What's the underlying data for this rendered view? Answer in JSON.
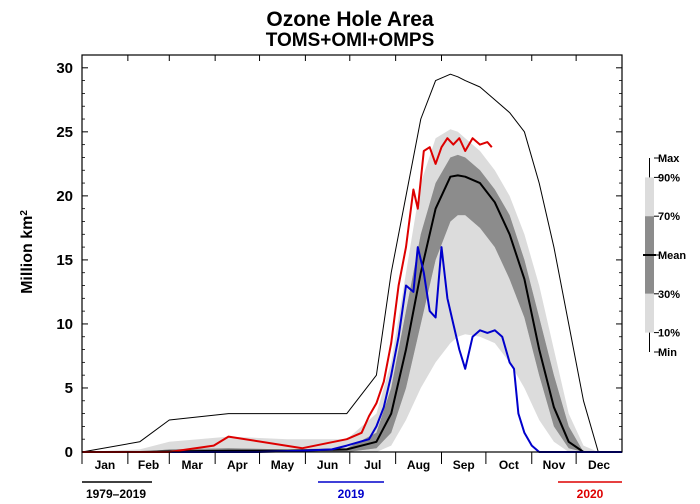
{
  "chart_data": {
    "type": "line",
    "title": "Ozone Hole Area",
    "subtitle": "TOMS+OMI+OMPS",
    "ylabel": "Million km",
    "ylabel_superscript": "2",
    "ylim": [
      0,
      31
    ],
    "yticks": [
      0,
      5,
      10,
      15,
      20,
      25,
      30
    ],
    "xlim": [
      1,
      366
    ],
    "months": [
      {
        "label": "Jan",
        "start": 1
      },
      {
        "label": "Feb",
        "start": 32
      },
      {
        "label": "Mar",
        "start": 60
      },
      {
        "label": "Apr",
        "start": 91
      },
      {
        "label": "May",
        "start": 121
      },
      {
        "label": "Jun",
        "start": 152
      },
      {
        "label": "Jul",
        "start": 182
      },
      {
        "label": "Aug",
        "start": 213
      },
      {
        "label": "Sep",
        "start": 244
      },
      {
        "label": "Oct",
        "start": 274
      },
      {
        "label": "Nov",
        "start": 305
      },
      {
        "label": "Dec",
        "start": 335
      }
    ],
    "x": [
      1,
      40,
      60,
      100,
      140,
      180,
      200,
      210,
      220,
      230,
      240,
      250,
      255,
      260,
      270,
      280,
      290,
      300,
      310,
      320,
      330,
      340,
      350,
      366
    ],
    "series": [
      {
        "name": "Max",
        "color": "#000000",
        "values": [
          0,
          0.8,
          2.5,
          3,
          3,
          3,
          6,
          14,
          20,
          26,
          29,
          29.5,
          29.3,
          29,
          28.5,
          27.5,
          26.5,
          25,
          21,
          16,
          10,
          4,
          0,
          0
        ]
      },
      {
        "name": "90%",
        "color": "#dcdcdc",
        "values": [
          0,
          0.2,
          0.8,
          1.2,
          1.0,
          1.0,
          3,
          7,
          14,
          21,
          24.5,
          25.2,
          25.0,
          24.5,
          23.5,
          22,
          20,
          17,
          13,
          8,
          3,
          0.5,
          0,
          0
        ]
      },
      {
        "name": "70%",
        "color": "#b4b4b4",
        "values": [
          0,
          0,
          0.2,
          0.3,
          0.2,
          0.3,
          1.5,
          5,
          11,
          17,
          21,
          23,
          23.2,
          23,
          22,
          20.5,
          18.5,
          15,
          10.5,
          6,
          2,
          0,
          0,
          0
        ]
      },
      {
        "name": "Mean",
        "color": "#000000",
        "values": [
          0,
          0,
          0.05,
          0.1,
          0.1,
          0.2,
          0.8,
          3,
          8,
          14,
          19,
          21.5,
          21.6,
          21.5,
          21,
          19.5,
          17,
          13.5,
          8,
          3.5,
          0.8,
          0,
          0,
          0
        ]
      },
      {
        "name": "30%",
        "color": "#8c8c8c",
        "values": [
          0,
          0,
          0,
          0,
          0,
          0,
          0.3,
          1.5,
          5,
          10,
          15,
          18,
          18.5,
          18.5,
          17.5,
          16,
          13.5,
          10.5,
          6,
          2,
          0.3,
          0,
          0,
          0
        ]
      },
      {
        "name": "10%",
        "color": "#b4b4b4",
        "values": [
          0,
          0,
          0,
          0,
          0,
          0,
          0,
          0.5,
          2.5,
          5,
          7,
          8.5,
          9,
          9.2,
          9.0,
          8.5,
          7,
          5,
          2.5,
          0.8,
          0,
          0,
          0,
          0
        ]
      },
      {
        "name": "Min",
        "color": "#dcdcdc",
        "values": [
          0,
          0,
          0,
          0,
          0,
          0,
          0,
          0,
          0,
          0,
          0,
          0,
          0.1,
          0.2,
          0.2,
          0.1,
          0,
          0,
          0,
          0,
          0,
          0,
          0,
          0
        ]
      },
      {
        "name": "2019",
        "color": "#0000cc",
        "x": [
          1,
          60,
          120,
          150,
          170,
          180,
          195,
          200,
          205,
          210,
          215,
          220,
          225,
          228,
          232,
          236,
          240,
          244,
          248,
          252,
          256,
          260,
          265,
          270,
          275,
          280,
          285,
          290,
          293,
          296,
          300,
          305,
          310,
          366
        ],
        "values": [
          0,
          0,
          0,
          0.1,
          0.2,
          0.5,
          1.0,
          2.0,
          3.5,
          6.0,
          9.0,
          13.0,
          12.5,
          16.0,
          14.0,
          11.0,
          10.5,
          16.0,
          12.0,
          10.0,
          8.0,
          6.5,
          9.0,
          9.5,
          9.3,
          9.5,
          9.0,
          7.0,
          6.5,
          3.0,
          1.5,
          0.5,
          0,
          0
        ]
      },
      {
        "name": "2020",
        "color": "#dd0000",
        "x": [
          1,
          60,
          90,
          100,
          150,
          180,
          190,
          195,
          200,
          205,
          210,
          215,
          220,
          225,
          228,
          232,
          236,
          240,
          244,
          248,
          252,
          256,
          260,
          265,
          270,
          275,
          278
        ],
        "values": [
          0,
          0,
          0.5,
          1.2,
          0.3,
          1.0,
          1.5,
          2.8,
          3.8,
          5.5,
          8.5,
          13.0,
          16.0,
          20.5,
          19.0,
          23.5,
          23.8,
          22.5,
          23.8,
          24.5,
          24.0,
          24.5,
          23.5,
          24.5,
          24.0,
          24.2,
          23.8
        ]
      }
    ],
    "legend": {
      "placement": "right",
      "entries": [
        "Max",
        "90%",
        "70%",
        "Mean",
        "30%",
        "10%",
        "Min"
      ]
    },
    "year_labels": [
      {
        "label": "1979–2019",
        "color": "#000000"
      },
      {
        "label": "2019",
        "color": "#0000cc"
      },
      {
        "label": "2020",
        "color": "#dd0000"
      }
    ]
  }
}
